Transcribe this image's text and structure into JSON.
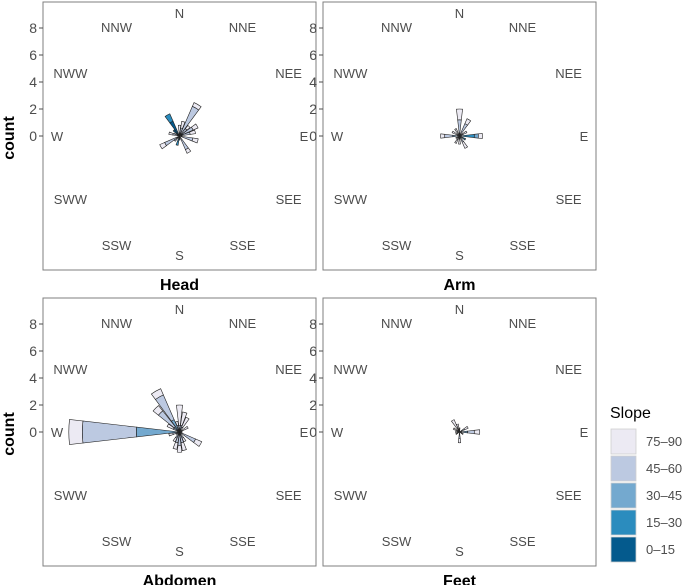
{
  "chart_data": {
    "type": "polar-stacked-bar",
    "ylabel": "count",
    "y_ticks": [
      0,
      2,
      4,
      6,
      8
    ],
    "directions": [
      "N",
      "NNE",
      "NEE",
      "E",
      "SEE",
      "SSE",
      "S",
      "SSW",
      "SWW",
      "W",
      "NWW",
      "NNW"
    ],
    "legend": {
      "title": "Slope",
      "position": "right",
      "entries": [
        {
          "label": "75–90",
          "color": "#ECEAF3"
        },
        {
          "label": "45–60",
          "color": "#BCC9E1"
        },
        {
          "label": "30–45",
          "color": "#74A9CF"
        },
        {
          "label": "15–30",
          "color": "#2B8CBE"
        },
        {
          "label": "0–15",
          "color": "#045A8D"
        }
      ]
    },
    "panels": [
      {
        "title": "Head",
        "bars": [
          {
            "angle": 0,
            "stack": [
              0.8,
              0,
              0,
              0,
              0
            ]
          },
          {
            "angle": 15,
            "stack": [
              0.5,
              0.6,
              0,
              0,
              0
            ]
          },
          {
            "angle": 30,
            "stack": [
              0.3,
              2.4,
              0,
              0,
              0
            ]
          },
          {
            "angle": 45,
            "stack": [
              0.3,
              0.7,
              0,
              0,
              0
            ]
          },
          {
            "angle": 60,
            "stack": [
              0.4,
              0.8,
              0.3,
              0,
              0
            ]
          },
          {
            "angle": 75,
            "stack": [
              0.4,
              0.8,
              0,
              0,
              0
            ]
          },
          {
            "angle": 90,
            "stack": [
              0.2,
              0,
              0,
              0,
              0
            ]
          },
          {
            "angle": 105,
            "stack": [
              0.4,
              1.0,
              0,
              0,
              0
            ]
          },
          {
            "angle": 150,
            "stack": [
              0.3,
              1.1,
              0,
              0,
              0
            ]
          },
          {
            "angle": 180,
            "stack": [
              0.3,
              0,
              0,
              0,
              0
            ]
          },
          {
            "angle": 195,
            "stack": [
              0,
              0,
              0,
              0.7,
              0
            ]
          },
          {
            "angle": 225,
            "stack": [
              0,
              0.5,
              0,
              0,
              0
            ]
          },
          {
            "angle": 240,
            "stack": [
              0.4,
              1.2,
              0,
              0,
              0
            ]
          },
          {
            "angle": 285,
            "stack": [
              0.3,
              0.5,
              0,
              0,
              0
            ]
          },
          {
            "angle": 300,
            "stack": [
              0.4,
              0,
              0,
              0,
              0
            ]
          },
          {
            "angle": 315,
            "stack": [
              0,
              0,
              0,
              0,
              0.6
            ]
          },
          {
            "angle": 330,
            "stack": [
              0,
              0,
              0,
              0.6,
              1.2
            ]
          }
        ]
      },
      {
        "title": "Arm",
        "bars": [
          {
            "angle": 0,
            "stack": [
              0.8,
              1.2,
              0,
              0,
              0
            ]
          },
          {
            "angle": 30,
            "stack": [
              0.4,
              1.0,
              0,
              0,
              0
            ]
          },
          {
            "angle": 60,
            "stack": [
              0.3,
              0.3,
              0,
              0,
              0
            ]
          },
          {
            "angle": 90,
            "stack": [
              0.3,
              0,
              0.3,
              1.1,
              0
            ]
          },
          {
            "angle": 120,
            "stack": [
              0,
              0,
              0,
              0.5,
              0
            ]
          },
          {
            "angle": 150,
            "stack": [
              0.5,
              0.5,
              0,
              0,
              0
            ]
          },
          {
            "angle": 180,
            "stack": [
              0.6,
              0,
              0,
              0,
              0
            ]
          },
          {
            "angle": 210,
            "stack": [
              0.3,
              0.3,
              0,
              0,
              0
            ]
          },
          {
            "angle": 240,
            "stack": [
              0.3,
              0,
              0,
              0,
              0
            ]
          },
          {
            "angle": 270,
            "stack": [
              0.3,
              0.6,
              0.5,
              0,
              0
            ]
          },
          {
            "angle": 300,
            "stack": [
              0.6,
              0,
              0,
              0,
              0
            ]
          },
          {
            "angle": 330,
            "stack": [
              0.6,
              0,
              0,
              0,
              0
            ]
          }
        ]
      },
      {
        "title": "Abdomen",
        "bars": [
          {
            "angle": 0,
            "stack": [
              1.5,
              0.5,
              0,
              0,
              0
            ]
          },
          {
            "angle": 15,
            "stack": [
              1.0,
              0.5,
              0,
              0,
              0
            ]
          },
          {
            "angle": 30,
            "stack": [
              0.8,
              0.4,
              0,
              0,
              0
            ]
          },
          {
            "angle": 60,
            "stack": [
              0.5,
              0.2,
              0,
              0,
              0
            ]
          },
          {
            "angle": 90,
            "stack": [
              0.2,
              0,
              0,
              0,
              0
            ]
          },
          {
            "angle": 120,
            "stack": [
              0.5,
              1.3,
              0,
              0,
              0
            ]
          },
          {
            "angle": 150,
            "stack": [
              0.3,
              0.5,
              0,
              0,
              0
            ]
          },
          {
            "angle": 165,
            "stack": [
              0.6,
              0.8,
              0,
              0,
              0
            ]
          },
          {
            "angle": 180,
            "stack": [
              0.5,
              1.0,
              0,
              0,
              0
            ]
          },
          {
            "angle": 195,
            "stack": [
              0.5,
              0.8,
              0,
              0,
              0
            ]
          },
          {
            "angle": 210,
            "stack": [
              0.3,
              0.5,
              0,
              0,
              0
            ]
          },
          {
            "angle": 240,
            "stack": [
              0.3,
              0,
              0,
              0,
              0
            ]
          },
          {
            "angle": 255,
            "stack": [
              0.3,
              0.5,
              0,
              0,
              0
            ]
          },
          {
            "angle": 270,
            "stack": [
              1.0,
              4.0,
              3.2,
              0,
              0
            ]
          },
          {
            "angle": 300,
            "stack": [
              0.5,
              0.5,
              0,
              0,
              0
            ]
          },
          {
            "angle": 315,
            "stack": [
              0.5,
              1.5,
              0.5,
              0,
              0
            ]
          },
          {
            "angle": 330,
            "stack": [
              0.5,
              2.0,
              1.0,
              0,
              0
            ]
          },
          {
            "angle": 345,
            "stack": [
              0.3,
              0.5,
              0,
              0,
              0
            ]
          }
        ]
      },
      {
        "title": "Feet",
        "bars": [
          {
            "angle": 0,
            "stack": [
              0.3,
              0,
              0,
              0,
              0
            ]
          },
          {
            "angle": 60,
            "stack": [
              0.3,
              0.4,
              0,
              0,
              0
            ]
          },
          {
            "angle": 90,
            "stack": [
              0.4,
              0.5,
              0.6,
              0,
              0
            ]
          },
          {
            "angle": 120,
            "stack": [
              0.3,
              0,
              0,
              0,
              0
            ]
          },
          {
            "angle": 180,
            "stack": [
              0.3,
              0.5,
              0,
              0,
              0
            ]
          },
          {
            "angle": 240,
            "stack": [
              0.3,
              0,
              0,
              0,
              0
            ]
          },
          {
            "angle": 270,
            "stack": [
              0.3,
              0,
              0,
              0,
              0
            ]
          },
          {
            "angle": 300,
            "stack": [
              0.5,
              0,
              0,
              0,
              0
            ]
          },
          {
            "angle": 330,
            "stack": [
              0.7,
              0.3,
              0,
              0,
              0
            ]
          },
          {
            "angle": 345,
            "stack": [
              0.6,
              0,
              0,
              0,
              0
            ]
          }
        ]
      }
    ]
  }
}
